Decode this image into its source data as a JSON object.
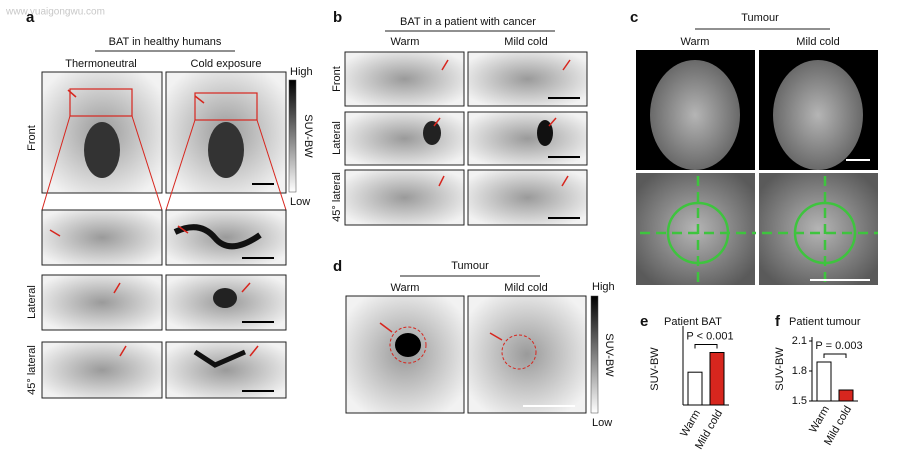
{
  "watermark": "www.yuaigongwu.com",
  "panel_a": {
    "label": "a",
    "title": "BAT in healthy humans",
    "columns": [
      "Thermoneutral",
      "Cold exposure"
    ],
    "rows": [
      "Front",
      "Lateral",
      "45° lateral"
    ],
    "colorbar": {
      "high": "High",
      "axis": "SUV-BW",
      "low": "Low"
    }
  },
  "panel_b": {
    "label": "b",
    "title": "BAT in a patient with cancer",
    "columns": [
      "Warm",
      "Mild cold"
    ],
    "rows": [
      "Front",
      "Lateral",
      "45° lateral"
    ]
  },
  "panel_c": {
    "label": "c",
    "title": "Tumour",
    "columns": [
      "Warm",
      "Mild cold"
    ]
  },
  "panel_d": {
    "label": "d",
    "title": "Tumour",
    "columns": [
      "Warm",
      "Mild cold"
    ],
    "colorbar": {
      "high": "High",
      "axis": "SUV-BW",
      "low": "Low"
    }
  },
  "chart_data": [
    {
      "label": "e",
      "type": "bar",
      "title": "Patient BAT",
      "annotation": "P < 0.001",
      "y_label": "SUV-BW",
      "categories": [
        "Warm",
        "Mild cold"
      ],
      "values": [
        3.5,
        5.6
      ],
      "colors": [
        "#ffffff",
        "#d7261e"
      ],
      "ylim": [
        0,
        8
      ]
    },
    {
      "label": "f",
      "type": "bar",
      "title": "Patient tumour",
      "annotation": "P = 0.003",
      "y_label": "SUV-BW",
      "categories": [
        "Warm",
        "Mild cold"
      ],
      "values": [
        1.89,
        1.61
      ],
      "colors": [
        "#ffffff",
        "#d7261e"
      ],
      "ylim": [
        1.5,
        2.1
      ],
      "yticks": [
        1.5,
        1.8,
        2.1
      ]
    }
  ]
}
